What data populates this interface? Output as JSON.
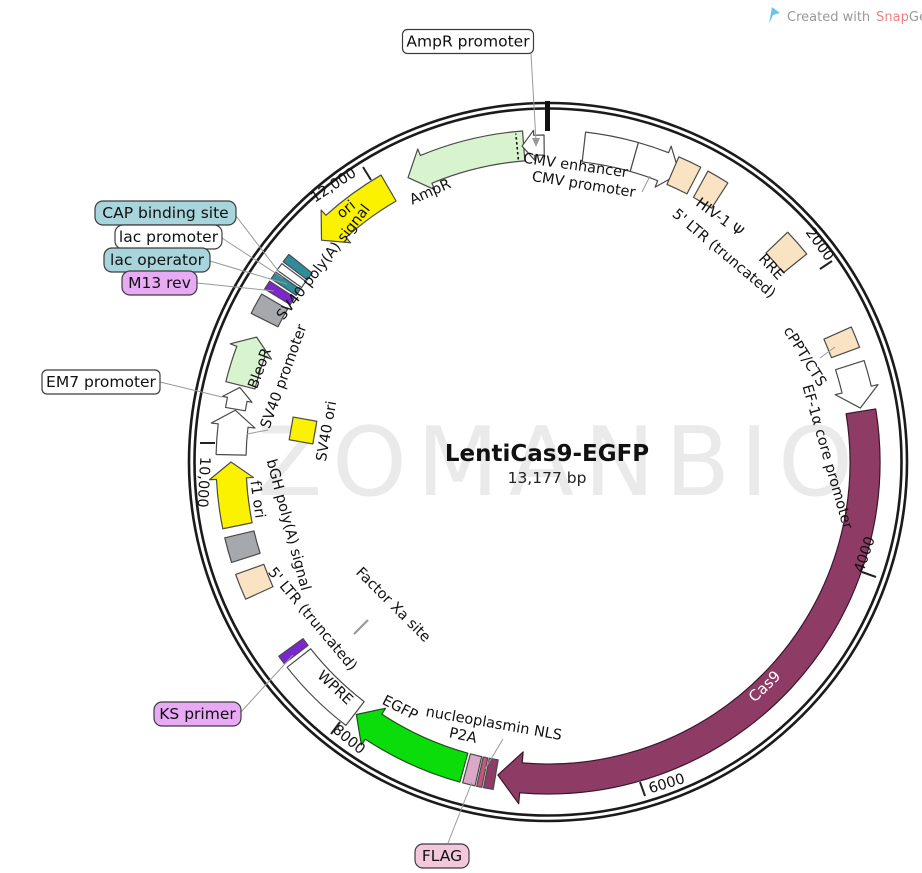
{
  "credit": {
    "prefix": "Created with",
    "snap": "Snap",
    "gene": "Gene",
    "reg": "®"
  },
  "title": {
    "name": "LentiCas9-EGFP",
    "size": "13,177 bp"
  },
  "watermark": "ZOMANBIO",
  "ticks": {
    "k2": "2000",
    "k4": "4000",
    "k6": "6000",
    "k8": "8000",
    "k10": "10,000",
    "k12": "12,000"
  },
  "features": {
    "cmv_enhancer": "CMV enhancer",
    "cmv_promoter": "CMV promoter",
    "ltr5_top": "5' LTR (truncated)",
    "hiv1_psi": "HIV-1 Ψ",
    "rre": "RRE",
    "cppt": "cPPT/CTS",
    "ef1a": "EF-1α core promoter",
    "cas9": "Cas9",
    "nls": "nucleoplasmin NLS",
    "p2a": "P2A",
    "egfp": "EGFP",
    "wpre": "WPRE",
    "ltr5_left": "5' LTR (truncated)",
    "bgh": "bGH poly(A) signal",
    "f1ori": "f1 ori",
    "factor_xa": "Factor Xa site",
    "sv40_prom": "SV40 promoter",
    "bleor": "BleoR",
    "sv40_polya": "SV40 poly(A) signal",
    "sv40_ori": "SV40 ori",
    "ori": "ori",
    "ampr": "AmpR"
  },
  "callouts": {
    "ampr_promoter": "AmpR promoter",
    "cap_binding": "CAP binding site",
    "lac_promoter": "lac promoter",
    "lac_operator": "lac operator",
    "m13_rev": "M13 rev",
    "em7": "EM7 promoter",
    "ks_primer": "KS primer",
    "flag": "FLAG"
  },
  "colors": {
    "misc_tan": "#FAE3C3",
    "cds_green": "#D8F4CF",
    "egfp_green": "#0BDD0B",
    "cas9_maroon": "#8E3B66",
    "ori_yellow": "#FBF200",
    "polya_gray": "#A5A9AD",
    "p2a_pink": "#DBA9C8",
    "flag_pink": "#C4557E",
    "purple_mark": "#7D26CD",
    "teal_mark": "#2F8C9C",
    "label_teal": "#A7D5DB",
    "label_violet": "#E8AAF5",
    "label_pink": "#F4C8DC",
    "ring": "#1b1b1b"
  }
}
